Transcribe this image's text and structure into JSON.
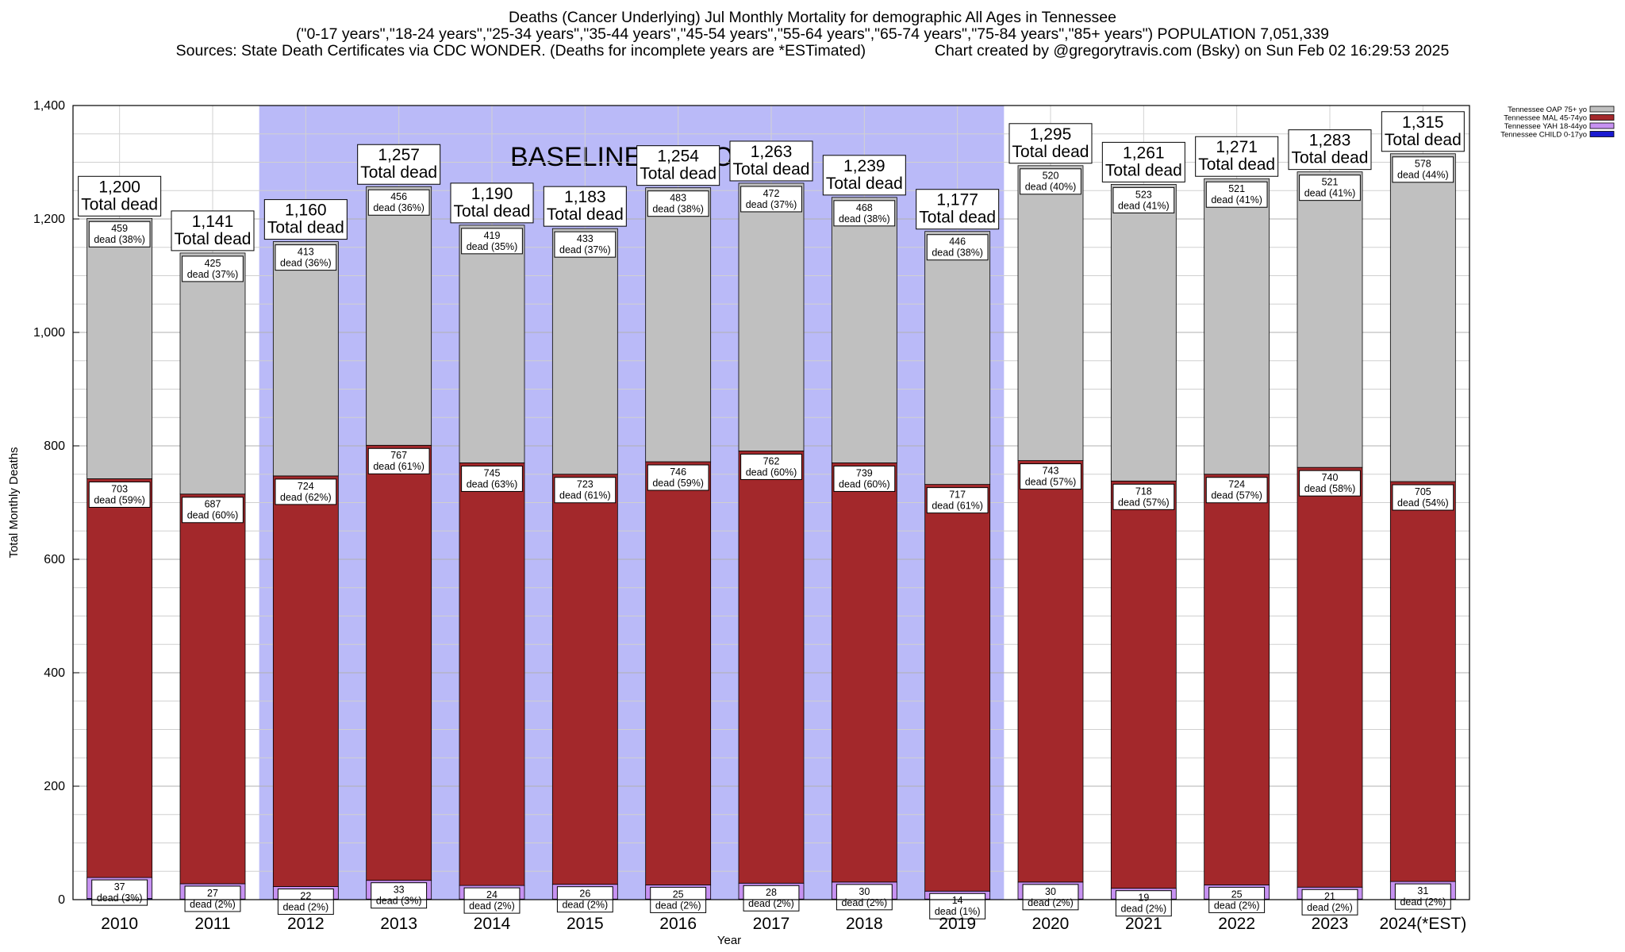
{
  "header": {
    "title": "Deaths (Cancer Underlying) Jul Monthly Mortality for demographic All Ages in Tennessee",
    "subtitle": "(\"0-17 years\",\"18-24 years\",\"25-34 years\",\"35-44 years\",\"45-54 years\",\"55-64 years\",\"65-74 years\",\"75-84 years\",\"85+ years\") POPULATION 7,051,339",
    "sources": "Sources: State Death Certificates via CDC WONDER. (Deaths for incomplete years are *ESTimated)",
    "credit": "Chart created by @gregorytravis.com (Bsky) on Sun Feb 02 16:29:53 2025"
  },
  "chart_data": {
    "type": "bar",
    "stacked": true,
    "xlabel": "Year",
    "ylabel": "Total Monthly Deaths",
    "ylim": [
      0,
      1400
    ],
    "yticks": [
      0,
      200,
      400,
      600,
      800,
      1000,
      1200,
      1400
    ],
    "ytick_labels": [
      "0",
      "200",
      "400",
      "600",
      "800",
      "1,000",
      "1,200",
      "1,400"
    ],
    "grid": true,
    "legend_position": "top-right",
    "categories": [
      "2010",
      "2011",
      "2012",
      "2013",
      "2014",
      "2015",
      "2016",
      "2017",
      "2018",
      "2019",
      "2020",
      "2021",
      "2022",
      "2023",
      "2024(*EST)"
    ],
    "baseline_period": {
      "label": "BASELINE PERIOD",
      "start": "2012",
      "end": "2019",
      "color": "#babaf8"
    },
    "series": [
      {
        "name": "Tennessee CHILD 0-17yo",
        "color": "#1a1ad0",
        "values": [
          2,
          1,
          1,
          1,
          1,
          1,
          1,
          1,
          1,
          1,
          1,
          1,
          1,
          1,
          1
        ]
      },
      {
        "name": "Tennessee YAH 18-44yo",
        "color": "#c792f2",
        "values": [
          37,
          27,
          22,
          33,
          24,
          26,
          25,
          28,
          30,
          14,
          30,
          19,
          25,
          21,
          31
        ],
        "labels": [
          "dead (3%)",
          "dead (2%)",
          "dead (2%)",
          "dead (3%)",
          "dead (2%)",
          "dead (2%)",
          "dead (2%)",
          "dead (2%)",
          "dead (2%)",
          "dead (1%)",
          "dead (2%)",
          "dead (2%)",
          "dead (2%)",
          "dead (2%)",
          "dead (2%)"
        ]
      },
      {
        "name": "Tennessee MAL 45-74yo",
        "color": "#a3282b",
        "values": [
          703,
          687,
          724,
          767,
          745,
          723,
          746,
          762,
          739,
          717,
          743,
          718,
          724,
          740,
          705
        ],
        "labels": [
          "dead (59%)",
          "dead (60%)",
          "dead (62%)",
          "dead (61%)",
          "dead (63%)",
          "dead (61%)",
          "dead (59%)",
          "dead (60%)",
          "dead (60%)",
          "dead (61%)",
          "dead (57%)",
          "dead (57%)",
          "dead (57%)",
          "dead (58%)",
          "dead (54%)"
        ]
      },
      {
        "name": "Tennessee OAP 75+ yo",
        "color": "#c0c0c0",
        "values": [
          459,
          425,
          413,
          456,
          419,
          433,
          483,
          472,
          468,
          446,
          520,
          523,
          521,
          521,
          578
        ],
        "labels": [
          "dead (38%)",
          "dead (37%)",
          "dead (36%)",
          "dead (36%)",
          "dead (35%)",
          "dead (37%)",
          "dead (38%)",
          "dead (37%)",
          "dead (38%)",
          "dead (38%)",
          "dead (40%)",
          "dead (41%)",
          "dead (41%)",
          "dead (41%)",
          "dead (44%)"
        ]
      }
    ],
    "totals": [
      1200,
      1141,
      1160,
      1257,
      1190,
      1183,
      1254,
      1263,
      1239,
      1177,
      1295,
      1261,
      1271,
      1283,
      1315
    ],
    "total_labels": [
      "1,200",
      "1,141",
      "1,160",
      "1,257",
      "1,190",
      "1,183",
      "1,254",
      "1,263",
      "1,239",
      "1,177",
      "1,295",
      "1,261",
      "1,271",
      "1,283",
      "1,315"
    ],
    "total_suffix": "Total dead",
    "legend": [
      {
        "name": "Tennessee OAP 75+ yo",
        "color": "#c0c0c0"
      },
      {
        "name": "Tennessee MAL 45-74yo",
        "color": "#a3282b"
      },
      {
        "name": "Tennessee YAH 18-44yo",
        "color": "#c792f2"
      },
      {
        "name": "Tennessee CHILD 0-17yo",
        "color": "#1a1ad0"
      }
    ]
  }
}
